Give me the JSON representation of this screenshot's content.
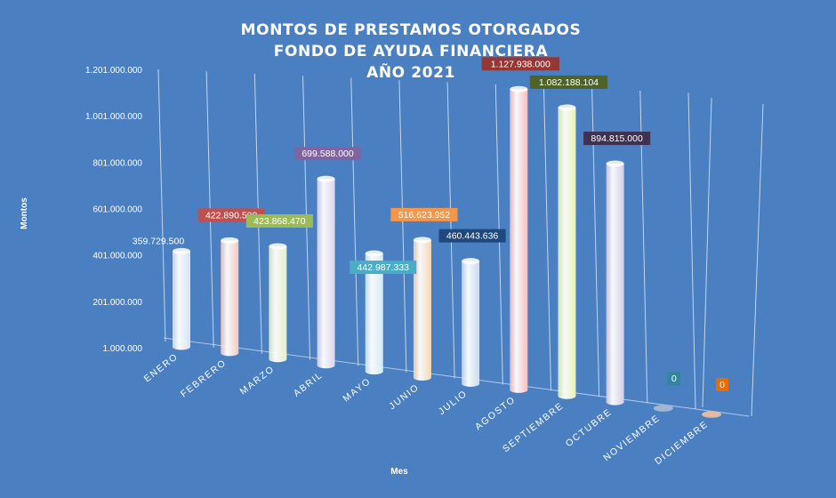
{
  "chart_data": {
    "type": "bar",
    "title": [
      "MONTOS  DE PRESTAMOS  OTORGADOS",
      "FONDO DE AYUDA  FINANCIERA",
      "AÑO 2021"
    ],
    "xlabel": "Mes",
    "ylabel": "Montos",
    "categories": [
      "ENERO",
      "FEBRERO",
      "MARZO",
      "ABRIL",
      "MAYO",
      "JUNIO",
      "JULIO",
      "AGOSTO",
      "SEPTIEMBRE",
      "OCTUBRE",
      "NOVIEMBRE",
      "DICIEMBRE"
    ],
    "values": [
      359729500,
      422890500,
      423868470,
      699588000,
      442987333,
      516623952,
      460443636,
      1127938000,
      1082188104,
      894815000,
      0,
      0
    ],
    "value_labels": [
      "359.729.500",
      "422.890.500",
      "423.868.470",
      "699.588.000",
      "442.987.333",
      "516.623.952",
      "460.443.636",
      "1.127.938.000",
      "1.082.188.104",
      "894.815.000",
      "0",
      "0"
    ],
    "y_ticks": [
      "1.000.000",
      "201.000.000",
      "401.000.000",
      "601.000.000",
      "801.000.000",
      "1.001.000.000",
      "1.201.000.000"
    ],
    "ylim": [
      1000000,
      1201000000
    ],
    "grid": "vertical lines per category (3D wall)",
    "legend": "none",
    "bar_colors": [
      "#d7e3f4",
      "#f3c9c1",
      "#e6efc4",
      "#ddd4ec",
      "#d3ecf3",
      "#f9d6b0",
      "#c9d9ef",
      "#f7bebb",
      "#e7f3b1",
      "#d5cbe5",
      "#a5b9d2",
      "#e8c0a0"
    ],
    "label_box_colors": [
      "none",
      "#c0504d",
      "#9bbb59",
      "#8064a2",
      "#4bacc6",
      "#f79646",
      "#1f497d",
      "#953735",
      "#4f6228",
      "#3f3151",
      "#31859c",
      "#e46c0a"
    ],
    "background": "#4a7fc1"
  }
}
